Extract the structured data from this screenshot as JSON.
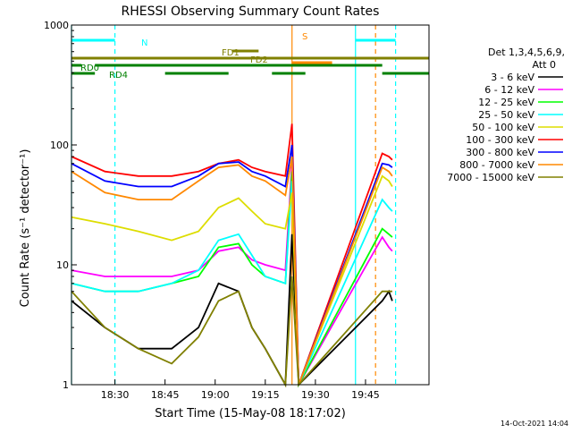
{
  "chart_data": {
    "type": "line",
    "title": "RHESSI Observing Summary Count Rates",
    "xlabel": "Start Time (15-May-08 18:17:02)",
    "ylabel": "Count Rate (s⁻¹ detector⁻¹)",
    "ylog": true,
    "ylim": [
      1,
      1000
    ],
    "xlim_min": [
      0,
      107
    ],
    "x_ticks": [
      {
        "label": "18:30",
        "min": 13
      },
      {
        "label": "18:45",
        "min": 28
      },
      {
        "label": "19:00",
        "min": 43
      },
      {
        "label": "19:15",
        "min": 58
      },
      {
        "label": "19:30",
        "min": 73
      },
      {
        "label": "19:45",
        "min": 88
      }
    ],
    "y_ticks": [
      {
        "label": "1",
        "value": 1
      },
      {
        "label": "10",
        "value": 10
      },
      {
        "label": "100",
        "value": 100
      },
      {
        "label": "1000",
        "value": 1000
      }
    ],
    "legend": {
      "position": "right",
      "header_line1": "Det 1,3,4,5,6,9,",
      "header_line2": "Att 0"
    },
    "series": [
      {
        "name": "3 - 6 keV",
        "color": "#000000",
        "values": [
          [
            0,
            5
          ],
          [
            10,
            3
          ],
          [
            20,
            2
          ],
          [
            30,
            2
          ],
          [
            38,
            3
          ],
          [
            44,
            7
          ],
          [
            50,
            6
          ],
          [
            54,
            3
          ],
          [
            58,
            2
          ],
          [
            64,
            1
          ],
          [
            66,
            18
          ],
          [
            68,
            1
          ],
          [
            93,
            5
          ],
          [
            95,
            6
          ],
          [
            96,
            5
          ]
        ]
      },
      {
        "name": "6 - 12 keV",
        "color": "#ff00ff",
        "values": [
          [
            0,
            9
          ],
          [
            10,
            8
          ],
          [
            20,
            8
          ],
          [
            30,
            8
          ],
          [
            38,
            9
          ],
          [
            44,
            13
          ],
          [
            50,
            14
          ],
          [
            54,
            11
          ],
          [
            58,
            10
          ],
          [
            64,
            9
          ],
          [
            66,
            70
          ],
          [
            68,
            1
          ],
          [
            93,
            17
          ],
          [
            95,
            14
          ],
          [
            96,
            13
          ]
        ]
      },
      {
        "name": "12 - 25 keV",
        "color": "#00ff00",
        "values": [
          [
            0,
            7
          ],
          [
            10,
            6
          ],
          [
            20,
            6
          ],
          [
            30,
            7
          ],
          [
            38,
            8
          ],
          [
            44,
            14
          ],
          [
            50,
            15
          ],
          [
            54,
            10
          ],
          [
            58,
            8
          ],
          [
            64,
            7
          ],
          [
            66,
            60
          ],
          [
            68,
            1
          ],
          [
            93,
            20
          ],
          [
            95,
            18
          ],
          [
            96,
            17
          ]
        ]
      },
      {
        "name": "25 - 50 keV",
        "color": "#00ffff",
        "values": [
          [
            0,
            7
          ],
          [
            10,
            6
          ],
          [
            20,
            6
          ],
          [
            30,
            7
          ],
          [
            38,
            9
          ],
          [
            44,
            16
          ],
          [
            50,
            18
          ],
          [
            54,
            12
          ],
          [
            58,
            8
          ],
          [
            64,
            7
          ],
          [
            66,
            50
          ],
          [
            68,
            1
          ],
          [
            93,
            35
          ],
          [
            95,
            30
          ],
          [
            96,
            28
          ]
        ]
      },
      {
        "name": "50 - 100 keV",
        "color": "#dddd00",
        "values": [
          [
            0,
            25
          ],
          [
            10,
            22
          ],
          [
            20,
            19
          ],
          [
            30,
            16
          ],
          [
            38,
            19
          ],
          [
            44,
            30
          ],
          [
            50,
            36
          ],
          [
            54,
            28
          ],
          [
            58,
            22
          ],
          [
            64,
            20
          ],
          [
            66,
            40
          ],
          [
            68,
            1
          ],
          [
            93,
            55
          ],
          [
            95,
            50
          ],
          [
            96,
            45
          ]
        ]
      },
      {
        "name": "100 - 300 keV",
        "color": "#ff0000",
        "values": [
          [
            0,
            80
          ],
          [
            10,
            60
          ],
          [
            20,
            55
          ],
          [
            30,
            55
          ],
          [
            38,
            60
          ],
          [
            44,
            70
          ],
          [
            50,
            75
          ],
          [
            54,
            65
          ],
          [
            58,
            60
          ],
          [
            64,
            55
          ],
          [
            66,
            150
          ],
          [
            68,
            1
          ],
          [
            93,
            85
          ],
          [
            95,
            80
          ],
          [
            96,
            75
          ]
        ]
      },
      {
        "name": "300 - 800 keV",
        "color": "#0000ff",
        "values": [
          [
            0,
            70
          ],
          [
            10,
            50
          ],
          [
            20,
            45
          ],
          [
            30,
            45
          ],
          [
            38,
            55
          ],
          [
            44,
            70
          ],
          [
            50,
            72
          ],
          [
            54,
            60
          ],
          [
            58,
            55
          ],
          [
            64,
            45
          ],
          [
            66,
            100
          ],
          [
            68,
            1
          ],
          [
            93,
            70
          ],
          [
            95,
            68
          ],
          [
            96,
            65
          ]
        ]
      },
      {
        "name": "800 - 7000 keV",
        "color": "#ff8800",
        "values": [
          [
            0,
            60
          ],
          [
            10,
            40
          ],
          [
            20,
            35
          ],
          [
            30,
            35
          ],
          [
            38,
            50
          ],
          [
            44,
            65
          ],
          [
            50,
            68
          ],
          [
            54,
            55
          ],
          [
            58,
            50
          ],
          [
            64,
            38
          ],
          [
            66,
            80
          ],
          [
            68,
            1
          ],
          [
            93,
            65
          ],
          [
            95,
            60
          ],
          [
            96,
            55
          ]
        ]
      },
      {
        "name": "7000 - 15000 keV",
        "color": "#808000",
        "values": [
          [
            0,
            6
          ],
          [
            10,
            3
          ],
          [
            20,
            2
          ],
          [
            30,
            1.5
          ],
          [
            38,
            2.5
          ],
          [
            44,
            5
          ],
          [
            50,
            6
          ],
          [
            54,
            3
          ],
          [
            58,
            2
          ],
          [
            64,
            1
          ],
          [
            66,
            8
          ],
          [
            68,
            1
          ],
          [
            93,
            6
          ],
          [
            95,
            6
          ],
          [
            96,
            6
          ]
        ]
      }
    ],
    "bars": [
      {
        "label": "N",
        "color": "#00ffff",
        "label_color": "#00ffff",
        "segments": [
          [
            0,
            13
          ],
          [
            85,
            97
          ]
        ]
      },
      {
        "label": "S",
        "color": "#ff8800",
        "label_color": "#ff8800",
        "segments": [
          [
            66,
            78
          ]
        ]
      },
      {
        "label": "FD1",
        "color": "#808000",
        "label_color": "#808000",
        "segments": [
          [
            48,
            56
          ]
        ]
      },
      {
        "label": "FD2",
        "color": "#808000",
        "label_color": "#808000",
        "segments": [
          [
            0,
            107
          ]
        ]
      },
      {
        "label": "RD0",
        "color": "#008000",
        "label_color": "#008000",
        "segments": [
          [
            0,
            3
          ],
          [
            7,
            93
          ]
        ]
      },
      {
        "label": "RD4",
        "color": "#008000",
        "label_color": "#008000",
        "segments": [
          [
            0,
            7
          ],
          [
            28,
            47
          ],
          [
            60,
            70
          ],
          [
            93,
            107
          ]
        ]
      }
    ],
    "vlines": [
      {
        "color": "#00ffff",
        "style": "dashed",
        "min": 13
      },
      {
        "color": "#00ffff",
        "style": "solid",
        "min": 0
      },
      {
        "color": "#00ffff",
        "style": "solid",
        "min": 85
      },
      {
        "color": "#00ffff",
        "style": "dashed",
        "min": 97
      },
      {
        "color": "#ff8800",
        "style": "solid",
        "min": 66
      },
      {
        "color": "#ff8800",
        "style": "dashed",
        "min": 91
      }
    ],
    "footer_date": "14-Oct-2021 14:04"
  }
}
